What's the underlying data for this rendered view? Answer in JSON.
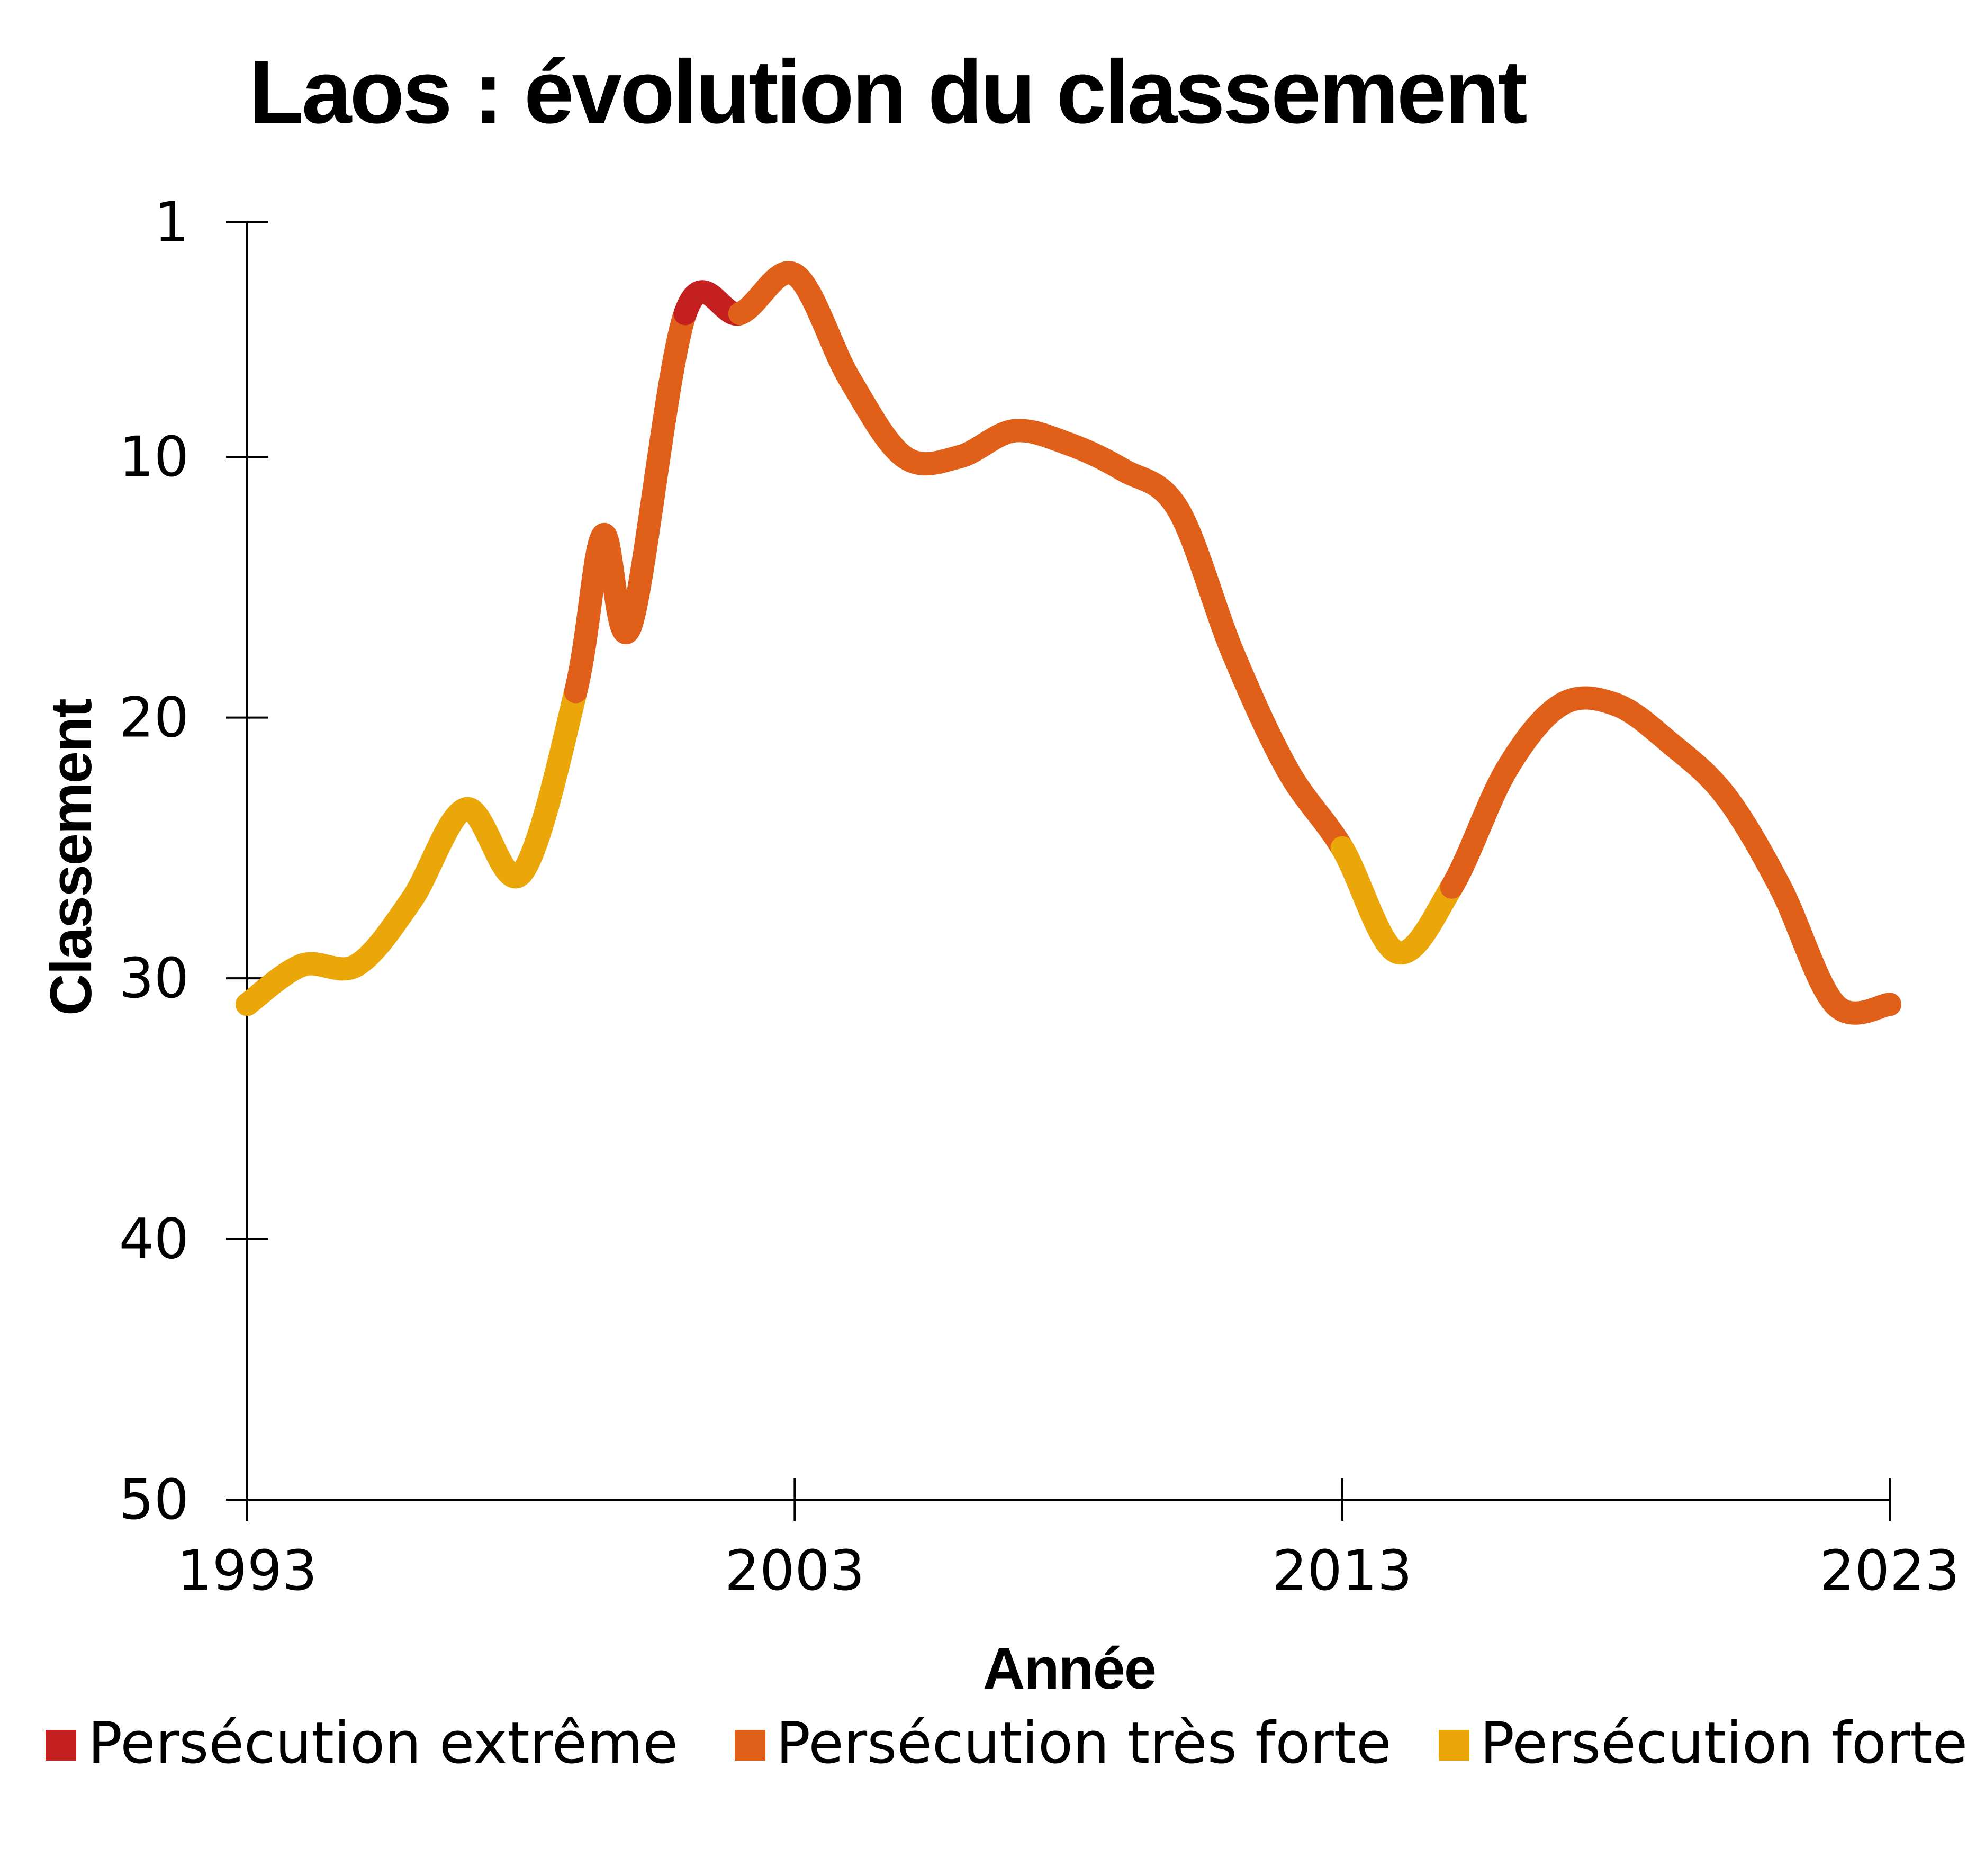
{
  "chart_data": {
    "type": "line",
    "title": "Laos : évolution du classement",
    "xlabel": "Année",
    "ylabel": "Classement",
    "xlim": [
      1993,
      2023
    ],
    "ylim": [
      1,
      50
    ],
    "y_inverted": true,
    "x_ticks": [
      "1993",
      "2003",
      "2013",
      "2023"
    ],
    "y_ticks": [
      "1",
      "10",
      "20",
      "30",
      "40",
      "50"
    ],
    "grid": false,
    "legend_position": "bottom",
    "colors": {
      "extreme": "#C42020",
      "very_strong": "#E0601A",
      "strong": "#EBA60A",
      "axis": "#000000"
    },
    "legend": [
      {
        "key": "extreme",
        "label": "Persécution extrême"
      },
      {
        "key": "very_strong",
        "label": "Persécution très forte"
      },
      {
        "key": "strong",
        "label": "Persécution forte"
      }
    ],
    "x": [
      1993,
      1994,
      1995,
      1996,
      1997,
      1998,
      1999,
      1999.5,
      2000,
      2001,
      2002,
      2003,
      2004,
      2005,
      2006,
      2007,
      2008,
      2009,
      2010,
      2011,
      2012,
      2013,
      2014,
      2015,
      2016,
      2017,
      2018,
      2019,
      2020,
      2021,
      2022,
      2023
    ],
    "values": [
      31,
      29.5,
      29.5,
      27,
      23.5,
      26,
      19,
      13,
      16.5,
      4.5,
      4.5,
      3,
      7,
      10,
      10,
      9,
      9.5,
      10.5,
      12,
      17.5,
      22,
      25,
      29,
      26.5,
      22,
      19.5,
      19.5,
      21,
      23,
      26.5,
      31,
      31
    ],
    "levels": [
      "strong",
      "strong",
      "strong",
      "strong",
      "strong",
      "strong",
      "very_strong",
      "very_strong",
      "very_strong",
      "extreme",
      "very_strong",
      "very_strong",
      "very_strong",
      "very_strong",
      "very_strong",
      "very_strong",
      "very_strong",
      "very_strong",
      "very_strong",
      "very_strong",
      "very_strong",
      "strong",
      "strong",
      "very_strong",
      "very_strong",
      "very_strong",
      "very_strong",
      "very_strong",
      "very_strong",
      "very_strong",
      "very_strong",
      "very_strong"
    ]
  }
}
